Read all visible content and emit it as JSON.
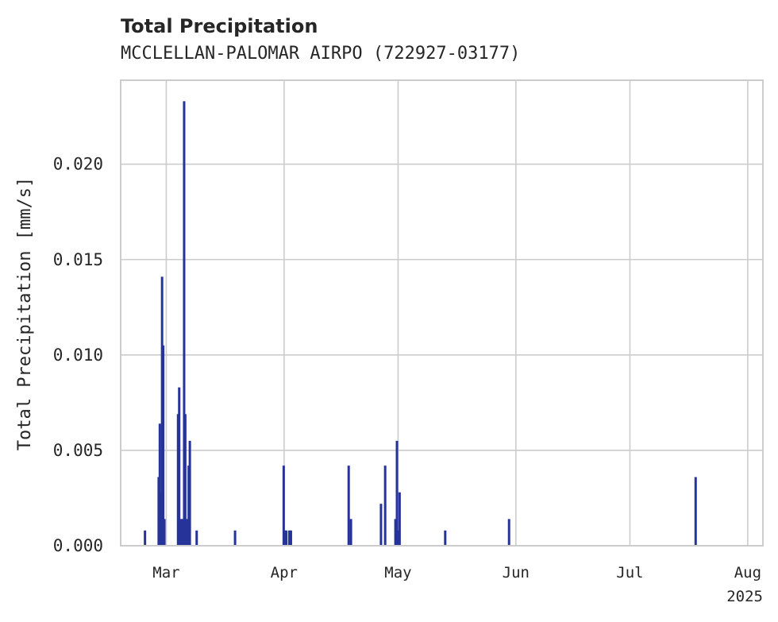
{
  "chart_data": {
    "type": "bar",
    "title": "Total Precipitation",
    "subtitle": "MCCLELLAN-PALOMAR AIRPO (722927-03177)",
    "ylabel": "Total Precipitation [mm/s]",
    "xlabel": "",
    "year_label": "2025",
    "bar_color": "#26349a",
    "ylim": [
      0,
      0.0244
    ],
    "xlim_day": [
      -2,
      167
    ],
    "yticks": [
      {
        "value": 0.0,
        "label": "0.000"
      },
      {
        "value": 0.005,
        "label": "0.005"
      },
      {
        "value": 0.01,
        "label": "0.010"
      },
      {
        "value": 0.015,
        "label": "0.015"
      },
      {
        "value": 0.02,
        "label": "0.020"
      }
    ],
    "xticks": [
      {
        "day": 10,
        "label": "Mar"
      },
      {
        "day": 41,
        "label": "Apr"
      },
      {
        "day": 71,
        "label": "May"
      },
      {
        "day": 102,
        "label": "Jun"
      },
      {
        "day": 132,
        "label": "Jul"
      },
      {
        "day": 163,
        "label": "Aug"
      }
    ],
    "date_reference": "day 0 = 2025-02-19",
    "series": [
      {
        "name": "Total Precipitation",
        "points": [
          {
            "day": 4.4,
            "value": 0.0008
          },
          {
            "day": 8.0,
            "value": 0.0036
          },
          {
            "day": 8.3,
            "value": 0.0064
          },
          {
            "day": 8.6,
            "value": 0.0028
          },
          {
            "day": 8.9,
            "value": 0.0141
          },
          {
            "day": 9.2,
            "value": 0.0105
          },
          {
            "day": 9.5,
            "value": 0.0014
          },
          {
            "day": 13.1,
            "value": 0.0069
          },
          {
            "day": 13.4,
            "value": 0.0083
          },
          {
            "day": 13.8,
            "value": 0.0014
          },
          {
            "day": 14.1,
            "value": 0.0014
          },
          {
            "day": 14.7,
            "value": 0.0233
          },
          {
            "day": 15.0,
            "value": 0.0069
          },
          {
            "day": 15.3,
            "value": 0.0014
          },
          {
            "day": 15.6,
            "value": 0.0014
          },
          {
            "day": 15.9,
            "value": 0.0042
          },
          {
            "day": 16.2,
            "value": 0.0055
          },
          {
            "day": 18.0,
            "value": 0.0008
          },
          {
            "day": 28.1,
            "value": 0.0008
          },
          {
            "day": 40.9,
            "value": 0.0042
          },
          {
            "day": 41.2,
            "value": 0.0008
          },
          {
            "day": 41.6,
            "value": 0.0008
          },
          {
            "day": 42.4,
            "value": 0.0008
          },
          {
            "day": 42.8,
            "value": 0.0008
          },
          {
            "day": 58.0,
            "value": 0.0042
          },
          {
            "day": 58.6,
            "value": 0.0014
          },
          {
            "day": 66.5,
            "value": 0.0022
          },
          {
            "day": 67.6,
            "value": 0.0042
          },
          {
            "day": 70.3,
            "value": 0.0014
          },
          {
            "day": 70.7,
            "value": 0.0055
          },
          {
            "day": 71.0,
            "value": 0.0008
          },
          {
            "day": 71.4,
            "value": 0.0028
          },
          {
            "day": 83.4,
            "value": 0.0008
          },
          {
            "day": 100.2,
            "value": 0.0014
          },
          {
            "day": 149.3,
            "value": 0.0036
          }
        ]
      }
    ]
  }
}
